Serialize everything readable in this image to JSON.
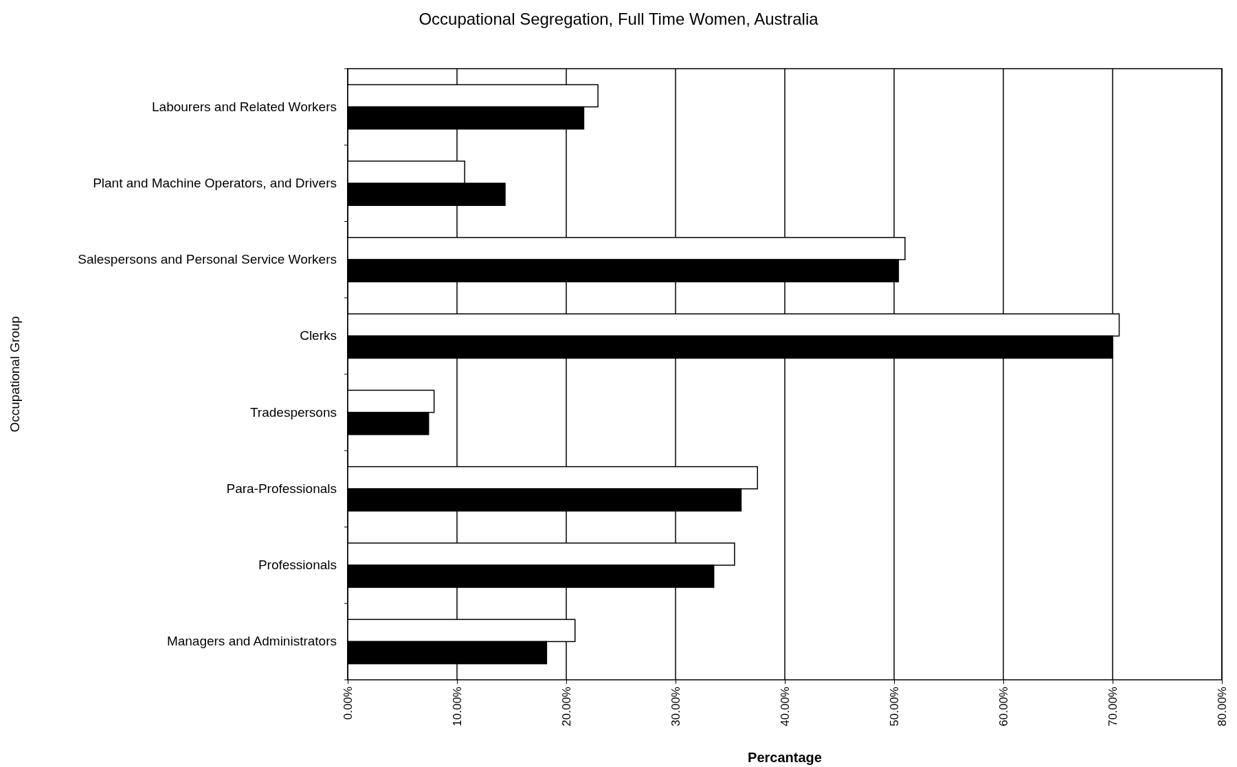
{
  "chart_data": {
    "type": "bar",
    "orientation": "horizontal",
    "title": "Occupational Segregation, Full Time Women, Australia",
    "xlabel": "Percantage",
    "ylabel": "Occupational Group",
    "categories": [
      "Labourers and Related Workers",
      "Plant and Machine Operators, and Drivers",
      "Salespersons and Personal Service Workers",
      "Clerks",
      "Tradespersons",
      "Para-Professionals",
      "Professionals",
      "Managers and Administrators"
    ],
    "series": [
      {
        "color": "#ffffff",
        "values": [
          22.9,
          10.7,
          51.0,
          70.6,
          7.9,
          37.5,
          35.4,
          20.8
        ]
      },
      {
        "color": "#000000",
        "values": [
          21.6,
          14.4,
          50.4,
          70.0,
          7.4,
          36.0,
          33.5,
          18.2
        ]
      }
    ],
    "xlim": [
      0,
      80
    ],
    "xticks": [
      {
        "value": 0,
        "label": "0.00%"
      },
      {
        "value": 10,
        "label": "10.00%"
      },
      {
        "value": 20,
        "label": "20.00%"
      },
      {
        "value": 30,
        "label": "30.00%"
      },
      {
        "value": 40,
        "label": "40.00%"
      },
      {
        "value": 50,
        "label": "50.00%"
      },
      {
        "value": 60,
        "label": "60.00%"
      },
      {
        "value": 70,
        "label": "70.00%"
      },
      {
        "value": 80,
        "label": "80.00%"
      }
    ],
    "grid": "x"
  }
}
